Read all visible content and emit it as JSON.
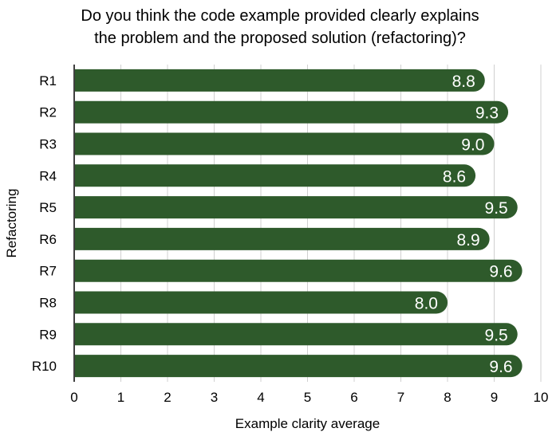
{
  "chart_data": {
    "type": "bar",
    "orientation": "horizontal",
    "title_lines": [
      "Do you think the code example provided clearly explains",
      "the problem and the proposed solution (refactoring)?"
    ],
    "xlabel": "Example clarity average",
    "ylabel": "Refactoring",
    "categories": [
      "R1",
      "R2",
      "R3",
      "R4",
      "R5",
      "R6",
      "R7",
      "R8",
      "R9",
      "R10"
    ],
    "values": [
      8.8,
      9.3,
      9.0,
      8.6,
      9.5,
      8.9,
      9.6,
      8.0,
      9.5,
      9.6
    ],
    "data_labels": [
      "8.8",
      "9.3",
      "9.0",
      "8.6",
      "9.5",
      "8.9",
      "9.6",
      "8.0",
      "9.5",
      "9.6"
    ],
    "xlim": [
      0,
      10
    ],
    "xticks": [
      0,
      1,
      2,
      3,
      4,
      5,
      6,
      7,
      8,
      9,
      10
    ],
    "grid": "vertical",
    "legend": "none",
    "bar_color": "#2e5a2b",
    "label_color": "#ffffff"
  }
}
